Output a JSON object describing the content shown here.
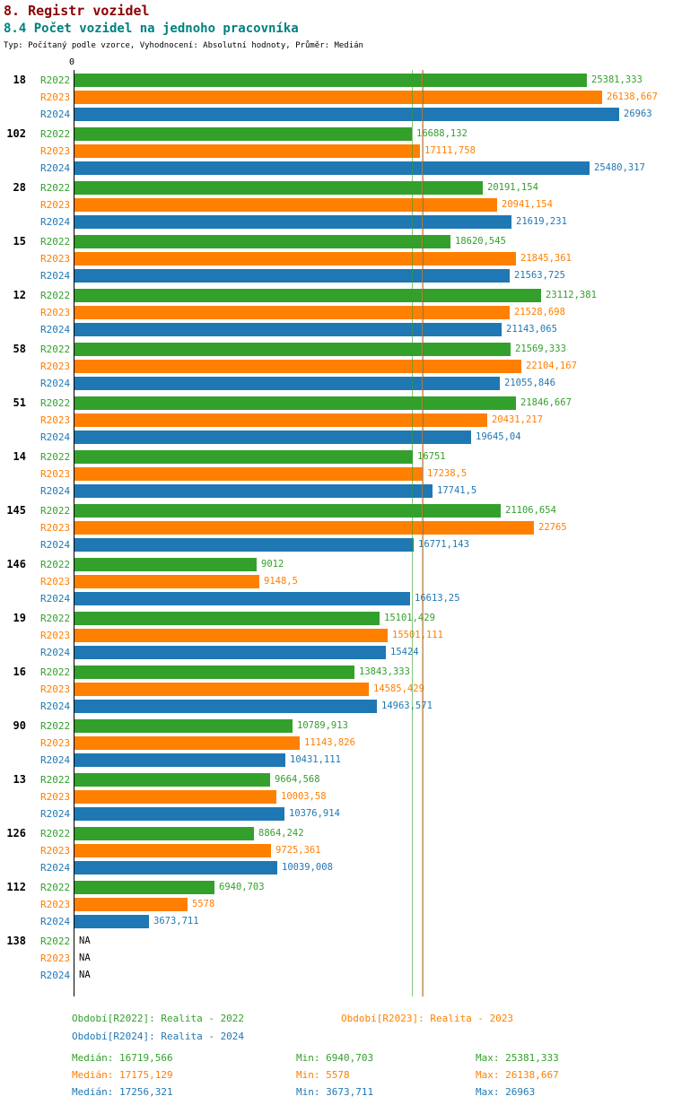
{
  "header": {
    "title": "8. Registr vozidel",
    "subtitle": "8.4 Počet vozidel na jednoho pracovníka",
    "meta": "Typ: Počítaný podle vzorce, Vyhodnocení: Absolutní hodnoty, Průměr: Medián"
  },
  "colors": {
    "title": "#8b0000",
    "subtitle": "#008080",
    "axis": "#000000"
  },
  "chart_data": {
    "type": "bar",
    "orientation": "horizontal",
    "title": "8.4 Počet vozidel na jednoho pracovníka",
    "xlabel": "",
    "ylabel": "",
    "xlim": [
      0,
      27000
    ],
    "axis_origin_label": "0",
    "grid": false,
    "series_names": [
      "R2022",
      "R2023",
      "R2024"
    ],
    "series_colors": [
      "#33a02c",
      "#ff7f00",
      "#1f78b4"
    ],
    "medians": [
      16719.566,
      17175.129,
      17256.321
    ],
    "groups": [
      {
        "label": "18",
        "values": [
          25381.333,
          26138.667,
          26963
        ],
        "value_labels": [
          "25381,333",
          "26138,667",
          "26963"
        ]
      },
      {
        "label": "102",
        "values": [
          16688.132,
          17111.758,
          25480.317
        ],
        "value_labels": [
          "16688,132",
          "17111,758",
          "25480,317"
        ]
      },
      {
        "label": "28",
        "values": [
          20191.154,
          20941.154,
          21619.231
        ],
        "value_labels": [
          "20191,154",
          "20941,154",
          "21619,231"
        ]
      },
      {
        "label": "15",
        "values": [
          18620.545,
          21845.361,
          21563.725
        ],
        "value_labels": [
          "18620,545",
          "21845,361",
          "21563,725"
        ]
      },
      {
        "label": "12",
        "values": [
          23112.381,
          21528.698,
          21143.065
        ],
        "value_labels": [
          "23112,381",
          "21528,698",
          "21143,065"
        ]
      },
      {
        "label": "58",
        "values": [
          21569.333,
          22104.167,
          21055.846
        ],
        "value_labels": [
          "21569,333",
          "22104,167",
          "21055,846"
        ]
      },
      {
        "label": "51",
        "values": [
          21846.667,
          20431.217,
          19645.04
        ],
        "value_labels": [
          "21846,667",
          "20431,217",
          "19645,04"
        ]
      },
      {
        "label": "14",
        "values": [
          16751,
          17238.5,
          17741.5
        ],
        "value_labels": [
          "16751",
          "17238,5",
          "17741,5"
        ]
      },
      {
        "label": "145",
        "values": [
          21106.654,
          22765,
          16771.143
        ],
        "value_labels": [
          "21106,654",
          "22765",
          "16771,143"
        ]
      },
      {
        "label": "146",
        "values": [
          9012,
          9148.5,
          16613.25
        ],
        "value_labels": [
          "9012",
          "9148,5",
          "16613,25"
        ]
      },
      {
        "label": "19",
        "values": [
          15101.429,
          15501.111,
          15424
        ],
        "value_labels": [
          "15101,429",
          "15501,111",
          "15424"
        ]
      },
      {
        "label": "16",
        "values": [
          13843.333,
          14585.429,
          14963.571
        ],
        "value_labels": [
          "13843,333",
          "14585,429",
          "14963,571"
        ]
      },
      {
        "label": "90",
        "values": [
          10789.913,
          11143.826,
          10431.111
        ],
        "value_labels": [
          "10789,913",
          "11143,826",
          "10431,111"
        ]
      },
      {
        "label": "13",
        "values": [
          9664.568,
          10003.58,
          10376.914
        ],
        "value_labels": [
          "9664,568",
          "10003,58",
          "10376,914"
        ]
      },
      {
        "label": "126",
        "values": [
          8864.242,
          9725.361,
          10039.008
        ],
        "value_labels": [
          "8864,242",
          "9725,361",
          "10039,008"
        ]
      },
      {
        "label": "112",
        "values": [
          6940.703,
          5578,
          3673.711
        ],
        "value_labels": [
          "6940,703",
          "5578",
          "3673,711"
        ]
      },
      {
        "label": "138",
        "values": [
          null,
          null,
          null
        ],
        "value_labels": [
          "NA",
          "NA",
          "NA"
        ]
      }
    ]
  },
  "legend": {
    "periods": [
      {
        "label": "Období[R2022]: Realita - 2022"
      },
      {
        "label": "Období[R2023]: Realita - 2023"
      },
      {
        "label": "Období[R2024]: Realita - 2024"
      }
    ],
    "stats": [
      {
        "median": "Medián: 16719,566",
        "min": "Min: 6940,703",
        "max": "Max: 25381,333"
      },
      {
        "median": "Medián: 17175,129",
        "min": "Min: 5578",
        "max": "Max: 26138,667"
      },
      {
        "median": "Medián: 17256,321",
        "min": "Min: 3673,711",
        "max": "Max: 26963"
      }
    ]
  }
}
